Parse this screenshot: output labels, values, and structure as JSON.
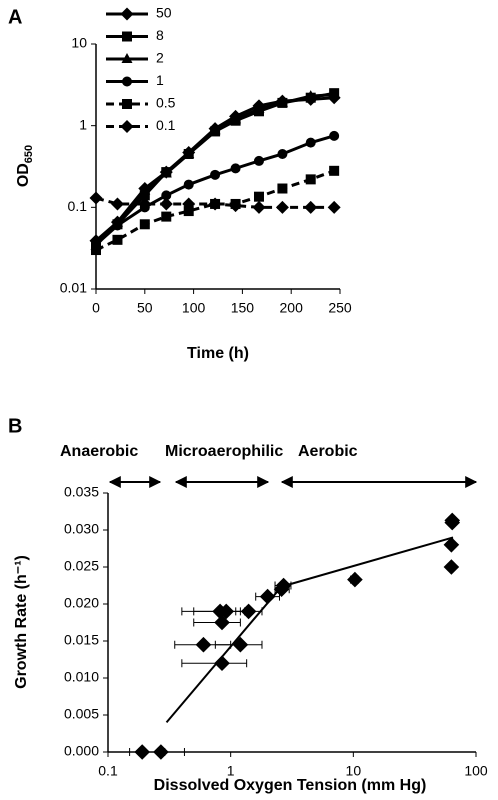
{
  "chart_data": [
    {
      "panel": "A",
      "type": "line",
      "xlabel": "Time (h)",
      "ylabel": "OD",
      "ylabel_subscript": "650",
      "x": [
        0,
        22,
        50,
        72,
        95,
        122,
        143,
        167,
        191,
        220,
        244
      ],
      "xlim": [
        0,
        250
      ],
      "xticks": [
        0,
        50,
        100,
        150,
        200,
        250
      ],
      "ylim": [
        0.01,
        10
      ],
      "yticks": [
        0.01,
        0.1,
        1,
        10
      ],
      "log_y": true,
      "color": "#000000",
      "series": [
        {
          "name": "50",
          "marker": "diamond",
          "dashed": false,
          "values": [
            0.039,
            0.066,
            0.17,
            0.27,
            0.47,
            0.92,
            1.3,
            1.75,
            2.0,
            2.1,
            2.2
          ]
        },
        {
          "name": "8",
          "marker": "square",
          "dashed": false,
          "values": [
            0.035,
            0.062,
            0.14,
            0.27,
            0.45,
            0.85,
            1.15,
            1.5,
            1.9,
            2.2,
            2.5
          ]
        },
        {
          "name": "2",
          "marker": "triangle",
          "dashed": false,
          "values": [
            0.034,
            0.065,
            0.16,
            0.26,
            0.45,
            0.88,
            1.2,
            1.6,
            1.9,
            2.3,
            2.4
          ]
        },
        {
          "name": "1",
          "marker": "circle",
          "dashed": false,
          "values": [
            0.035,
            0.06,
            0.1,
            0.14,
            0.19,
            0.25,
            0.3,
            0.37,
            0.45,
            0.62,
            0.75
          ]
        },
        {
          "name": "0.5",
          "marker": "square",
          "dashed": true,
          "values": [
            0.03,
            0.04,
            0.062,
            0.077,
            0.09,
            0.11,
            0.11,
            0.135,
            0.17,
            0.22,
            0.28
          ]
        },
        {
          "name": "0.1",
          "marker": "diamond",
          "dashed": true,
          "values": [
            0.13,
            0.11,
            0.11,
            0.11,
            0.11,
            0.11,
            0.105,
            0.1,
            0.1,
            0.1,
            0.1
          ]
        }
      ]
    },
    {
      "panel": "B",
      "type": "scatter",
      "xlabel": "Dissolved Oxygen Tension (mm Hg)",
      "ylabel": "Growth Rate (h⁻¹)",
      "annotations": [
        "Anaerobic",
        "Microaerophilic",
        "Aerobic"
      ],
      "xlim": [
        0.1,
        100
      ],
      "xticks": [
        0.1,
        1,
        10,
        100
      ],
      "log_x": true,
      "ylim": [
        0,
        0.035
      ],
      "yticks": [
        {
          "value": 0,
          "label": "0.000"
        },
        0.005,
        {
          "value": 0.01,
          "label": "0.010"
        },
        0.015,
        {
          "value": 0.02,
          "label": "0.020"
        },
        0.025,
        {
          "value": 0.03,
          "label": "0.030"
        },
        0.035
      ],
      "color": "#000000",
      "series": [
        {
          "x": [
            0.19,
            0.27,
            0.82,
            0.92,
            0.85,
            0.6,
            1.2,
            0.85,
            1.4,
            2.0,
            2.7,
            2.6,
            10.3,
            64,
            64,
            63,
            63
          ],
          "values": [
            0,
            0,
            0.019,
            0.019,
            0.0175,
            0.0145,
            0.0145,
            0.012,
            0.019,
            0.021,
            0.0225,
            0.022,
            0.0233,
            0.031,
            0.0313,
            0.028,
            0.025
          ],
          "x_low": [
            0.15,
            0.2,
            0.4,
            0.5,
            0.5,
            0.35,
            0.75,
            0.4,
            1.1,
            1.6,
            2.3,
            2.3,
            9.5,
            62,
            62,
            61,
            61
          ],
          "x_high": [
            0.29,
            0.42,
            1.2,
            1.3,
            1.2,
            1.0,
            1.8,
            1.35,
            1.8,
            2.5,
            3.1,
            3.0,
            11,
            66,
            66,
            65,
            65
          ]
        }
      ],
      "fit_lines": [
        {
          "x": [
            0.3,
            2.8
          ],
          "values": [
            0.004,
            0.023
          ]
        },
        {
          "x": [
            2.8,
            65
          ],
          "values": [
            0.0225,
            0.029
          ]
        }
      ]
    }
  ]
}
